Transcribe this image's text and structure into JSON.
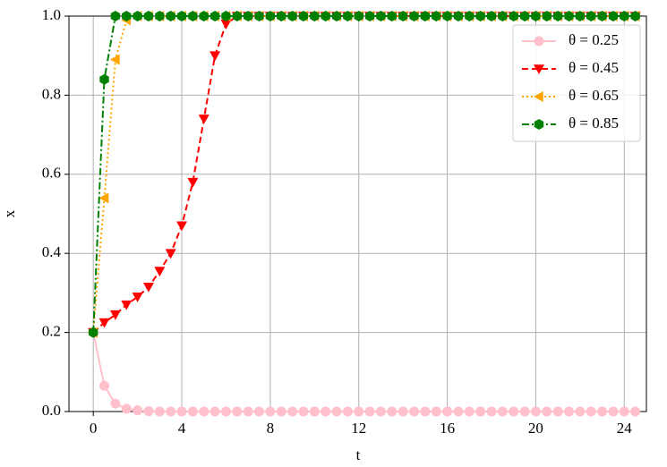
{
  "chart_data": {
    "type": "line",
    "x_label": "t",
    "y_label": "x",
    "x": [
      0,
      0.5,
      1,
      1.5,
      2,
      2.5,
      3,
      3.5,
      4,
      4.5,
      5,
      5.5,
      6,
      6.5,
      7,
      7.5,
      8,
      8.5,
      9,
      9.5,
      10,
      10.5,
      11,
      11.5,
      12,
      12.5,
      13,
      13.5,
      14,
      14.5,
      15,
      15.5,
      16,
      16.5,
      17,
      17.5,
      18,
      18.5,
      19,
      19.5,
      20,
      20.5,
      21,
      21.5,
      22,
      22.5,
      23,
      23.5,
      24,
      24.5
    ],
    "series": [
      {
        "name": "θ = 0.25",
        "color": "#ffc0cb",
        "dash": "solid",
        "marker": "circle",
        "values": [
          0.2,
          0.065,
          0.02,
          0.007,
          0.003,
          0.001,
          0,
          0,
          0,
          0,
          0,
          0,
          0,
          0,
          0,
          0,
          0,
          0,
          0,
          0,
          0,
          0,
          0,
          0,
          0,
          0,
          0,
          0,
          0,
          0,
          0,
          0,
          0,
          0,
          0,
          0,
          0,
          0,
          0,
          0,
          0,
          0,
          0,
          0,
          0,
          0,
          0,
          0,
          0,
          0
        ]
      },
      {
        "name": "θ = 0.45",
        "color": "#ff0000",
        "dash": "dashed",
        "marker": "triangle-down",
        "values": [
          0.2,
          0.225,
          0.245,
          0.27,
          0.29,
          0.315,
          0.355,
          0.4,
          0.47,
          0.58,
          0.74,
          0.9,
          0.98,
          1,
          1,
          1,
          1,
          1,
          1,
          1,
          1,
          1,
          1,
          1,
          1,
          1,
          1,
          1,
          1,
          1,
          1,
          1,
          1,
          1,
          1,
          1,
          1,
          1,
          1,
          1,
          1,
          1,
          1,
          1,
          1,
          1,
          1,
          1,
          1,
          1
        ]
      },
      {
        "name": "θ = 0.65",
        "color": "#ffa500",
        "dash": "dotted",
        "marker": "triangle-left",
        "values": [
          0.2,
          0.54,
          0.89,
          0.99,
          1,
          1,
          1,
          1,
          1,
          1,
          1,
          1,
          1,
          1,
          1,
          1,
          1,
          1,
          1,
          1,
          1,
          1,
          1,
          1,
          1,
          1,
          1,
          1,
          1,
          1,
          1,
          1,
          1,
          1,
          1,
          1,
          1,
          1,
          1,
          1,
          1,
          1,
          1,
          1,
          1,
          1,
          1,
          1,
          1,
          1
        ]
      },
      {
        "name": "θ = 0.85",
        "color": "#008000",
        "dash": "dashdot",
        "marker": "hexagon",
        "values": [
          0.2,
          0.84,
          1,
          1,
          1,
          1,
          1,
          1,
          1,
          1,
          1,
          1,
          1,
          1,
          1,
          1,
          1,
          1,
          1,
          1,
          1,
          1,
          1,
          1,
          1,
          1,
          1,
          1,
          1,
          1,
          1,
          1,
          1,
          1,
          1,
          1,
          1,
          1,
          1,
          1,
          1,
          1,
          1,
          1,
          1,
          1,
          1,
          1,
          1,
          1
        ]
      }
    ],
    "xlim": [
      -1.1,
      25.0
    ],
    "ylim": [
      0,
      1
    ],
    "xticks": [
      0,
      4,
      8,
      12,
      16,
      20,
      24
    ],
    "yticks": [
      {
        "value": 0,
        "label": "0.0"
      },
      0.2,
      0.4,
      0.6,
      0.8,
      {
        "value": 1,
        "label": "1.0"
      }
    ],
    "grid": true,
    "legend": "upper right"
  }
}
